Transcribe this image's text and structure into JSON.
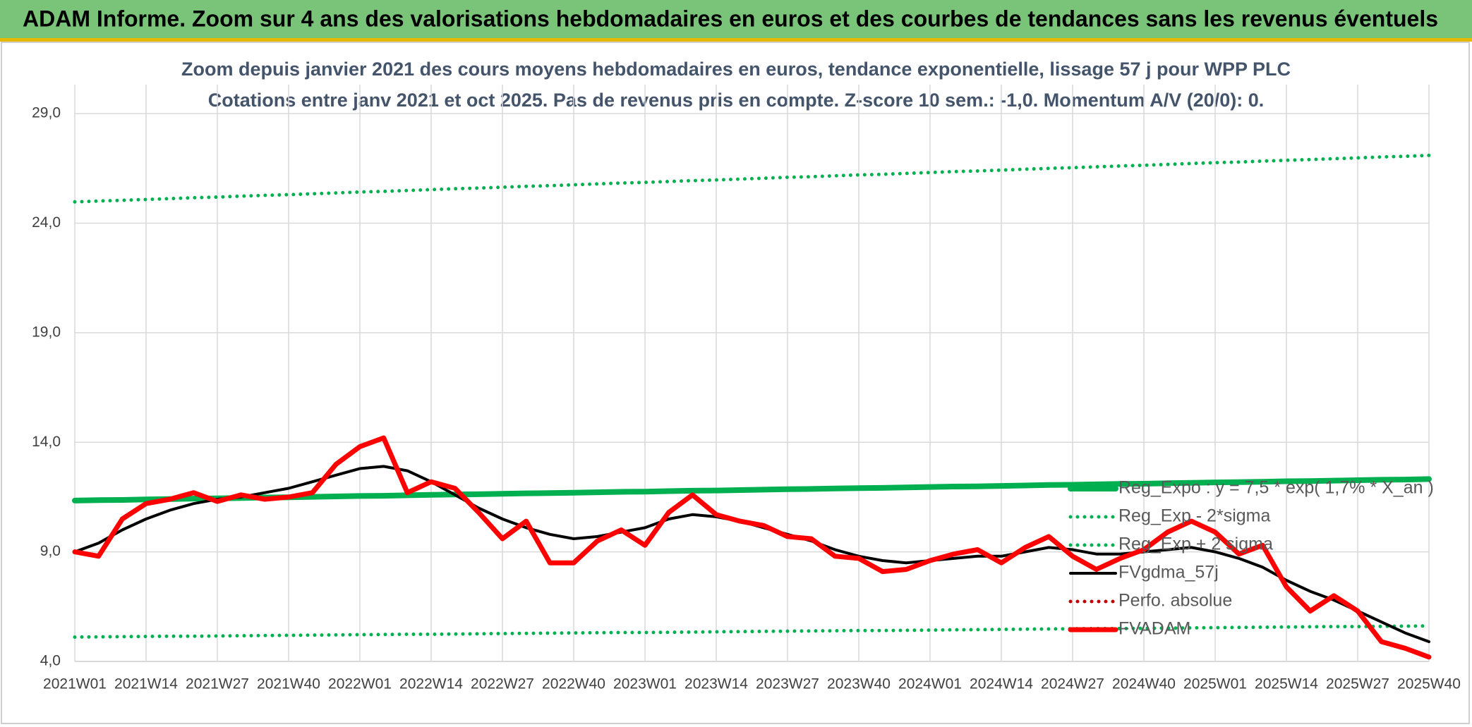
{
  "header": {
    "title": "ADAM Informe. Zoom sur 4 ans des valorisations hebdomadaires en euros et des courbes de tendances sans les revenus éventuels"
  },
  "chart_data": {
    "type": "line",
    "title": "Zoom depuis janvier 2021 des cours moyens hebdomadaires en euros, tendance exponentielle, lissage 57 j pour WPP PLC",
    "subtitle": "Cotations entre janv 2021 et oct 2025. Pas de revenus pris en compte. Z-score 10 sem.: -1,0. Momentum A/V (20/0): 0.",
    "categories": [
      "2021W01",
      null,
      null,
      "2021W14",
      null,
      null,
      "2021W27",
      null,
      null,
      "2021W40",
      null,
      null,
      "2022W01",
      null,
      null,
      "2022W14",
      null,
      null,
      "2022W27",
      null,
      null,
      "2022W40",
      null,
      null,
      "2023W01",
      null,
      null,
      "2023W14",
      null,
      null,
      "2023W27",
      null,
      null,
      "2023W40",
      null,
      null,
      "2024W01",
      null,
      null,
      "2024W14",
      null,
      null,
      "2024W27",
      null,
      null,
      "2024W40",
      null,
      null,
      "2025W01",
      null,
      null,
      "2025W14",
      null,
      null,
      "2025W27",
      null,
      null,
      "2025W40"
    ],
    "ylim": [
      4,
      30
    ],
    "yticks": [
      {
        "value": 4,
        "label": "4,0"
      },
      {
        "value": 9,
        "label": "9,0"
      },
      {
        "value": 14,
        "label": "14,0"
      },
      {
        "value": 19,
        "label": "19,0"
      },
      {
        "value": 24,
        "label": "24,0"
      },
      {
        "value": 29,
        "label": "29,0"
      }
    ],
    "grid": true,
    "legend": "right",
    "series": [
      {
        "name": "Reg_Expo : y = 7,5 * exp( 1,7% *  X_an )",
        "color": "#00b050",
        "line_style": "solid",
        "values": [
          11.34,
          11.36,
          11.37,
          11.39,
          11.41,
          11.43,
          11.44,
          11.46,
          11.48,
          11.49,
          11.51,
          11.53,
          11.55,
          11.56,
          11.58,
          11.6,
          11.62,
          11.63,
          11.65,
          11.67,
          11.68,
          11.7,
          11.72,
          11.74,
          11.75,
          11.77,
          11.79,
          11.8,
          11.82,
          11.84,
          11.86,
          11.87,
          11.89,
          11.91,
          11.92,
          11.94,
          11.96,
          11.98,
          11.99,
          12.01,
          12.03,
          12.05,
          12.06,
          12.08,
          12.1,
          12.11,
          12.13,
          12.15,
          12.17,
          12.18,
          12.2,
          12.22,
          12.23,
          12.25,
          12.27,
          12.29,
          12.3,
          12.32
        ]
      },
      {
        "name": "Reg_Exp - 2*sigma",
        "color": "#00b050",
        "line_style": "dotted",
        "values": [
          5.11,
          5.12,
          5.13,
          5.14,
          5.15,
          5.15,
          5.16,
          5.17,
          5.18,
          5.19,
          5.2,
          5.21,
          5.22,
          5.23,
          5.24,
          5.24,
          5.25,
          5.26,
          5.27,
          5.28,
          5.29,
          5.3,
          5.31,
          5.32,
          5.32,
          5.33,
          5.34,
          5.35,
          5.36,
          5.37,
          5.38,
          5.39,
          5.4,
          5.41,
          5.41,
          5.42,
          5.43,
          5.44,
          5.45,
          5.46,
          5.47,
          5.48,
          5.49,
          5.5,
          5.5,
          5.51,
          5.52,
          5.53,
          5.54,
          5.55,
          5.56,
          5.57,
          5.58,
          5.59,
          5.59,
          5.6,
          5.61,
          5.62
        ]
      },
      {
        "name": "Reg_Exp + 2 sigma",
        "color": "#00b050",
        "line_style": "dotted",
        "values": [
          24.97,
          25.01,
          25.04,
          25.08,
          25.12,
          25.16,
          25.19,
          25.23,
          25.27,
          25.3,
          25.34,
          25.38,
          25.42,
          25.45,
          25.49,
          25.53,
          25.57,
          25.6,
          25.64,
          25.68,
          25.71,
          25.75,
          25.79,
          25.83,
          25.86,
          25.9,
          25.94,
          25.97,
          26.01,
          26.05,
          26.09,
          26.12,
          26.16,
          26.2,
          26.23,
          26.27,
          26.31,
          26.35,
          26.38,
          26.42,
          26.46,
          26.5,
          26.53,
          26.57,
          26.61,
          26.64,
          26.68,
          26.72,
          26.76,
          26.79,
          26.83,
          26.87,
          26.9,
          26.94,
          26.98,
          27.02,
          27.05,
          27.09
        ]
      },
      {
        "name": "FVgdma_57j",
        "color": "#000000",
        "line_style": "solid",
        "values": [
          9.0,
          9.4,
          10.0,
          10.5,
          10.9,
          11.2,
          11.4,
          11.5,
          11.7,
          11.9,
          12.2,
          12.5,
          12.8,
          12.9,
          12.7,
          12.2,
          11.6,
          11.0,
          10.5,
          10.1,
          9.8,
          9.6,
          9.7,
          9.9,
          10.1,
          10.5,
          10.7,
          10.6,
          10.4,
          10.1,
          9.8,
          9.5,
          9.1,
          8.8,
          8.6,
          8.5,
          8.6,
          8.7,
          8.8,
          8.8,
          9.0,
          9.2,
          9.1,
          8.9,
          8.9,
          9.0,
          9.1,
          9.2,
          9.0,
          8.7,
          8.3,
          7.7,
          7.2,
          6.8,
          6.3,
          5.8,
          5.3,
          4.9
        ]
      },
      {
        "name": "Perfo. absolue",
        "color": "#c00000",
        "line_style": "dotted",
        "values": [
          null,
          null,
          null,
          null,
          null,
          null,
          null,
          null,
          null,
          null,
          null,
          null,
          null,
          null,
          null,
          null,
          null,
          null,
          null,
          null,
          null,
          null,
          null,
          null,
          null,
          null,
          null,
          null,
          null,
          null,
          null,
          null,
          null,
          null,
          null,
          null,
          null,
          null,
          null,
          null,
          null,
          null,
          null,
          null,
          null,
          null,
          null,
          null,
          null,
          null,
          null,
          null,
          null,
          null,
          null,
          null,
          null,
          null
        ]
      },
      {
        "name": "FVADAM",
        "color": "#ff0000",
        "line_style": "solid",
        "values": [
          9.0,
          8.8,
          10.5,
          11.2,
          11.4,
          11.7,
          11.3,
          11.6,
          11.4,
          11.5,
          11.7,
          13.0,
          13.8,
          14.2,
          11.7,
          12.2,
          11.9,
          10.8,
          9.6,
          10.4,
          8.5,
          8.5,
          9.5,
          10.0,
          9.3,
          10.8,
          11.6,
          10.7,
          10.4,
          10.2,
          9.7,
          9.6,
          8.8,
          8.7,
          8.1,
          8.2,
          8.6,
          8.9,
          9.1,
          8.5,
          9.2,
          9.7,
          8.8,
          8.2,
          8.7,
          9.1,
          9.9,
          10.4,
          9.9,
          8.9,
          9.3,
          7.4,
          6.3,
          7.0,
          6.3,
          4.9,
          4.6,
          4.2
        ]
      }
    ]
  }
}
